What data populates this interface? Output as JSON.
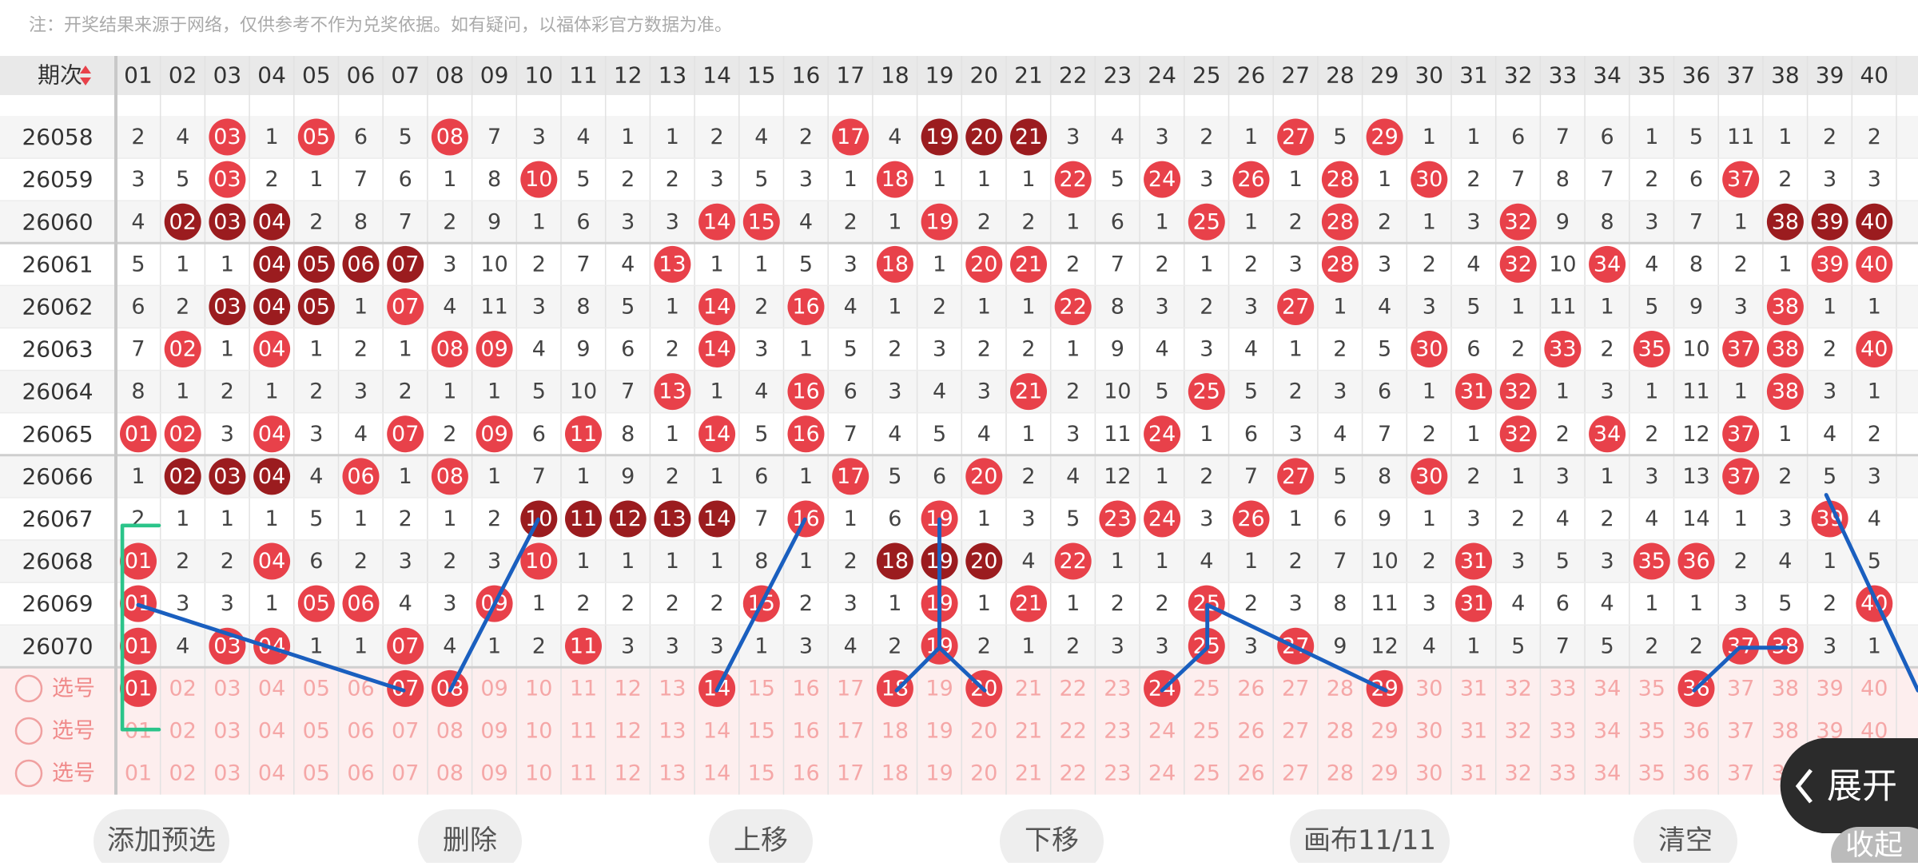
{
  "note": "注：开奖结果来源于网络，仅供参考不作为兑奖依据。如有疑问，以福体彩官方数据为准。",
  "table": {
    "issue_header": "期次",
    "columns": [
      "01",
      "02",
      "03",
      "04",
      "05",
      "06",
      "07",
      "08",
      "09",
      "10",
      "11",
      "12",
      "13",
      "14",
      "15",
      "16",
      "17",
      "18",
      "19",
      "20",
      "21",
      "22",
      "23",
      "24",
      "25",
      "26",
      "27",
      "28",
      "29",
      "30",
      "31",
      "32",
      "33",
      "34",
      "35",
      "36",
      "37",
      "38",
      "39",
      "40"
    ],
    "rows": [
      {
        "issue": "26058",
        "cells": [
          "2",
          "4",
          "03",
          "1",
          "05",
          "6",
          "5",
          "08",
          "7",
          "3",
          "4",
          "1",
          "1",
          "2",
          "4",
          "2",
          "17",
          "4",
          "19",
          "20",
          "21",
          "3",
          "4",
          "3",
          "2",
          "1",
          "27",
          "5",
          "29",
          "1",
          "1",
          "6",
          "7",
          "6",
          "1",
          "5",
          "11",
          "1",
          "2",
          "2"
        ],
        "red": [
          3,
          5,
          8,
          17,
          27,
          29
        ],
        "dark": [
          19,
          20,
          21
        ]
      },
      {
        "issue": "26059",
        "cells": [
          "3",
          "5",
          "03",
          "2",
          "1",
          "7",
          "6",
          "1",
          "8",
          "10",
          "5",
          "2",
          "2",
          "3",
          "5",
          "3",
          "1",
          "18",
          "1",
          "1",
          "1",
          "22",
          "5",
          "24",
          "3",
          "26",
          "1",
          "28",
          "1",
          "30",
          "2",
          "7",
          "8",
          "7",
          "2",
          "6",
          "37",
          "2",
          "3",
          "3"
        ],
        "red": [
          3,
          10,
          18,
          22,
          24,
          26,
          28,
          30,
          37
        ],
        "dark": []
      },
      {
        "issue": "26060",
        "cells": [
          "4",
          "02",
          "03",
          "04",
          "2",
          "8",
          "7",
          "2",
          "9",
          "1",
          "6",
          "3",
          "3",
          "14",
          "15",
          "4",
          "2",
          "1",
          "19",
          "2",
          "2",
          "1",
          "6",
          "1",
          "25",
          "1",
          "2",
          "28",
          "2",
          "1",
          "3",
          "32",
          "9",
          "8",
          "3",
          "7",
          "1",
          "38",
          "39",
          "40"
        ],
        "red": [
          14,
          15,
          19,
          25,
          28,
          32
        ],
        "dark": [
          2,
          3,
          4,
          38,
          39,
          40
        ]
      },
      {
        "issue": "26061",
        "cells": [
          "5",
          "1",
          "1",
          "04",
          "05",
          "06",
          "07",
          "3",
          "10",
          "2",
          "7",
          "4",
          "13",
          "1",
          "1",
          "5",
          "3",
          "18",
          "1",
          "20",
          "21",
          "2",
          "7",
          "2",
          "1",
          "2",
          "3",
          "28",
          "3",
          "2",
          "4",
          "32",
          "10",
          "34",
          "4",
          "8",
          "2",
          "1",
          "39",
          "40"
        ],
        "red": [
          13,
          18,
          20,
          21,
          28,
          32,
          34,
          39,
          40
        ],
        "dark": [
          4,
          5,
          6,
          7
        ]
      },
      {
        "issue": "26062",
        "cells": [
          "6",
          "2",
          "03",
          "04",
          "05",
          "1",
          "07",
          "4",
          "11",
          "3",
          "8",
          "5",
          "1",
          "14",
          "2",
          "16",
          "4",
          "1",
          "2",
          "1",
          "1",
          "22",
          "8",
          "3",
          "2",
          "3",
          "27",
          "1",
          "4",
          "3",
          "5",
          "1",
          "11",
          "1",
          "5",
          "9",
          "3",
          "38",
          "1",
          "1"
        ],
        "red": [
          7,
          14,
          16,
          22,
          27,
          38
        ],
        "dark": [
          3,
          4,
          5
        ]
      },
      {
        "issue": "26063",
        "cells": [
          "7",
          "02",
          "1",
          "04",
          "1",
          "2",
          "1",
          "08",
          "09",
          "4",
          "9",
          "6",
          "2",
          "14",
          "3",
          "1",
          "5",
          "2",
          "3",
          "2",
          "2",
          "1",
          "9",
          "4",
          "3",
          "4",
          "1",
          "2",
          "5",
          "30",
          "6",
          "2",
          "33",
          "2",
          "35",
          "10",
          "37",
          "38",
          "2",
          "40"
        ],
        "red": [
          2,
          4,
          8,
          9,
          14,
          30,
          33,
          35,
          37,
          38,
          40
        ],
        "dark": []
      },
      {
        "issue": "26064",
        "cells": [
          "8",
          "1",
          "2",
          "1",
          "2",
          "3",
          "2",
          "1",
          "1",
          "5",
          "10",
          "7",
          "13",
          "1",
          "4",
          "16",
          "6",
          "3",
          "4",
          "3",
          "21",
          "2",
          "10",
          "5",
          "25",
          "5",
          "2",
          "3",
          "6",
          "1",
          "31",
          "32",
          "1",
          "3",
          "1",
          "11",
          "1",
          "38",
          "3",
          "1"
        ],
        "red": [
          13,
          16,
          21,
          25,
          31,
          32,
          38
        ],
        "dark": []
      },
      {
        "issue": "26065",
        "cells": [
          "01",
          "02",
          "3",
          "04",
          "3",
          "4",
          "07",
          "2",
          "09",
          "6",
          "11",
          "8",
          "1",
          "14",
          "5",
          "16",
          "7",
          "4",
          "5",
          "4",
          "1",
          "3",
          "11",
          "24",
          "1",
          "6",
          "3",
          "4",
          "7",
          "2",
          "1",
          "32",
          "2",
          "34",
          "2",
          "12",
          "37",
          "1",
          "4",
          "2"
        ],
        "red": [
          1,
          2,
          4,
          7,
          9,
          11,
          14,
          16,
          24,
          32,
          34,
          37
        ],
        "dark": []
      },
      {
        "issue": "26066",
        "cells": [
          "1",
          "02",
          "03",
          "04",
          "4",
          "06",
          "1",
          "08",
          "1",
          "7",
          "1",
          "9",
          "2",
          "1",
          "6",
          "1",
          "17",
          "5",
          "6",
          "20",
          "2",
          "4",
          "12",
          "1",
          "2",
          "7",
          "27",
          "5",
          "8",
          "30",
          "2",
          "1",
          "3",
          "1",
          "3",
          "13",
          "37",
          "2",
          "5",
          "3"
        ],
        "red": [
          6,
          8,
          17,
          20,
          27,
          30,
          37
        ],
        "dark": [
          2,
          3,
          4
        ]
      },
      {
        "issue": "26067",
        "cells": [
          "2",
          "1",
          "1",
          "1",
          "5",
          "1",
          "2",
          "1",
          "2",
          "10",
          "11",
          "12",
          "13",
          "14",
          "7",
          "16",
          "1",
          "6",
          "19",
          "1",
          "3",
          "5",
          "23",
          "24",
          "3",
          "26",
          "1",
          "6",
          "9",
          "1",
          "3",
          "2",
          "4",
          "2",
          "4",
          "14",
          "1",
          "3",
          "39",
          "4"
        ],
        "red": [
          16,
          19,
          23,
          24,
          26,
          39
        ],
        "dark": [
          10,
          11,
          12,
          13,
          14
        ]
      },
      {
        "issue": "26068",
        "cells": [
          "01",
          "2",
          "2",
          "04",
          "6",
          "2",
          "3",
          "2",
          "3",
          "10",
          "1",
          "1",
          "1",
          "1",
          "8",
          "1",
          "2",
          "18",
          "19",
          "20",
          "4",
          "22",
          "1",
          "1",
          "4",
          "1",
          "2",
          "7",
          "10",
          "2",
          "31",
          "3",
          "5",
          "3",
          "35",
          "36",
          "2",
          "4",
          "1",
          "5"
        ],
        "red": [
          1,
          4,
          10,
          22,
          31,
          35,
          36
        ],
        "dark": [
          18,
          19,
          20
        ]
      },
      {
        "issue": "26069",
        "cells": [
          "01",
          "3",
          "3",
          "1",
          "05",
          "06",
          "4",
          "3",
          "09",
          "1",
          "2",
          "2",
          "2",
          "2",
          "15",
          "2",
          "3",
          "1",
          "19",
          "1",
          "21",
          "1",
          "2",
          "2",
          "25",
          "2",
          "3",
          "8",
          "11",
          "3",
          "31",
          "4",
          "6",
          "4",
          "1",
          "1",
          "3",
          "5",
          "2",
          "40"
        ],
        "red": [
          1,
          5,
          6,
          9,
          15,
          19,
          21,
          25,
          31,
          40
        ],
        "dark": []
      },
      {
        "issue": "26070",
        "cells": [
          "01",
          "4",
          "03",
          "04",
          "1",
          "1",
          "07",
          "4",
          "1",
          "2",
          "11",
          "3",
          "3",
          "3",
          "1",
          "3",
          "4",
          "2",
          "19",
          "2",
          "1",
          "2",
          "3",
          "3",
          "25",
          "3",
          "27",
          "9",
          "12",
          "4",
          "1",
          "5",
          "7",
          "5",
          "2",
          "2",
          "37",
          "38",
          "3",
          "1"
        ],
        "red": [
          1,
          3,
          4,
          7,
          11,
          19,
          25,
          27,
          37,
          38
        ],
        "dark": []
      }
    ],
    "pick_rows": [
      {
        "label": "选号",
        "selected": [
          1,
          7,
          8,
          14,
          18,
          20,
          24,
          29,
          36
        ]
      },
      {
        "label": "选号",
        "selected": []
      },
      {
        "label": "选号",
        "selected": []
      }
    ]
  },
  "buttons": [
    "添加预选",
    "删除",
    "上移",
    "下移",
    "画布11/11",
    "清空"
  ],
  "expand": "展开",
  "collapse": "收起"
}
